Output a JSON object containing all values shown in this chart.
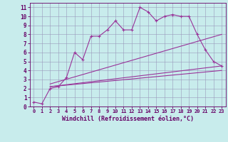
{
  "xlabel": "Windchill (Refroidissement éolien,°C)",
  "bg_color": "#c8ecec",
  "line_color": "#993399",
  "axis_color": "#660066",
  "grid_color": "#9999bb",
  "xlim": [
    -0.5,
    23.5
  ],
  "ylim": [
    0,
    11.5
  ],
  "xticks": [
    0,
    1,
    2,
    3,
    4,
    5,
    6,
    7,
    8,
    9,
    10,
    11,
    12,
    13,
    14,
    15,
    16,
    17,
    18,
    19,
    20,
    21,
    22,
    23
  ],
  "yticks": [
    0,
    1,
    2,
    3,
    4,
    5,
    6,
    7,
    8,
    9,
    10,
    11
  ],
  "lines": [
    {
      "x": [
        0,
        1,
        2,
        3,
        4,
        5,
        6,
        7,
        8,
        9,
        10,
        11,
        12,
        13,
        14,
        15,
        16,
        17,
        18,
        19,
        20,
        21,
        22,
        23
      ],
      "y": [
        0.5,
        0.3,
        2.0,
        2.2,
        3.2,
        6.0,
        5.2,
        7.8,
        7.8,
        8.5,
        9.5,
        8.5,
        8.5,
        11.0,
        10.5,
        9.5,
        10.0,
        10.2,
        10.0,
        10.0,
        8.0,
        6.3,
        5.0,
        4.5
      ]
    },
    {
      "x": [
        2,
        23
      ],
      "y": [
        2.2,
        4.5
      ]
    },
    {
      "x": [
        2,
        23
      ],
      "y": [
        2.2,
        4.0
      ]
    },
    {
      "x": [
        2,
        23
      ],
      "y": [
        2.5,
        8.0
      ]
    }
  ]
}
